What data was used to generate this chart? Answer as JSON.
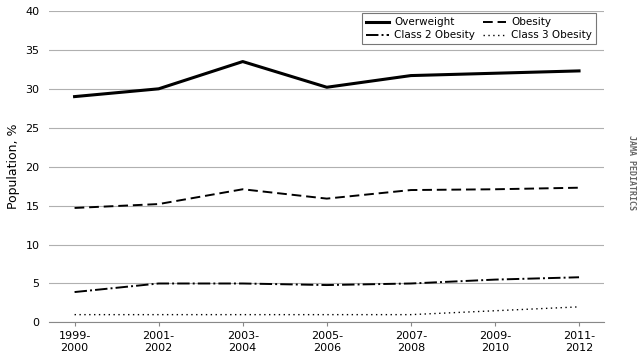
{
  "x_labels": [
    "1999-\n2000",
    "2001-\n2002",
    "2003-\n2004",
    "2005-\n2006",
    "2007-\n2008",
    "2009-\n2010",
    "2011-\n2012"
  ],
  "x_positions": [
    0,
    1,
    2,
    3,
    4,
    5,
    6
  ],
  "overweight": [
    29.0,
    30.0,
    33.5,
    30.2,
    31.7,
    32.0,
    32.3
  ],
  "obesity": [
    14.7,
    15.2,
    17.1,
    15.9,
    17.0,
    17.1,
    17.3
  ],
  "class2_obesity": [
    3.9,
    5.0,
    5.0,
    4.8,
    5.0,
    5.5,
    5.8
  ],
  "class3_obesity": [
    1.0,
    1.0,
    1.0,
    1.0,
    1.0,
    1.5,
    2.0
  ],
  "ylim": [
    0,
    40
  ],
  "yticks": [
    0,
    5,
    10,
    15,
    20,
    25,
    30,
    35,
    40
  ],
  "ylabel": "Population, %",
  "watermark": "JAMA PEDIATRICS",
  "background_color": "#ffffff",
  "grid_color": "#b0b0b0",
  "line_color": "#000000"
}
